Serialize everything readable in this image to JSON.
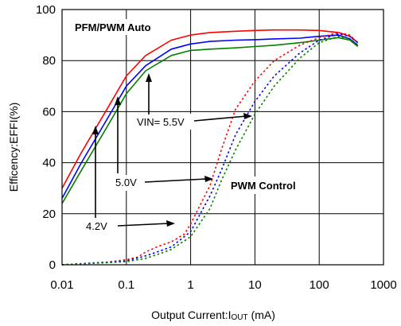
{
  "chart_data": {
    "type": "line",
    "title": "",
    "xlabel": "Output Current:I",
    "xlabel_sub": "OUT",
    "xlabel_unit": " (mA)",
    "ylabel": "Efficency:EFFI(%)",
    "xscale": "log",
    "xlim": [
      0.01,
      1000
    ],
    "ylim": [
      0,
      100
    ],
    "grid": true,
    "x_ticks": [
      0.01,
      0.1,
      1,
      10,
      100,
      1000
    ],
    "x_tick_labels": [
      "0.01",
      "0.1",
      "1",
      "10",
      "100",
      "1000"
    ],
    "y_ticks": [
      0,
      20,
      40,
      60,
      80,
      100
    ],
    "y_tick_labels": [
      "0",
      "20",
      "40",
      "60",
      "80",
      "100"
    ],
    "series": [
      {
        "color": "#ff0000",
        "style": "solid",
        "x": [
          0.01,
          0.02,
          0.05,
          0.1,
          0.2,
          0.5,
          1,
          2,
          5,
          10,
          20,
          50,
          100,
          200,
          300,
          400
        ],
        "y": [
          30,
          44,
          61,
          74,
          82,
          88,
          90,
          91,
          91.5,
          91.8,
          92,
          92,
          91.8,
          91,
          89.5,
          87
        ]
      },
      {
        "color": "#0000ff",
        "style": "solid",
        "x": [
          0.01,
          0.02,
          0.05,
          0.1,
          0.2,
          0.5,
          1,
          2,
          5,
          10,
          20,
          50,
          100,
          200,
          300,
          400
        ],
        "y": [
          26,
          40,
          57,
          70,
          78,
          84.5,
          86.5,
          87.5,
          88,
          88.2,
          88.5,
          88.8,
          89.5,
          90,
          88.5,
          86
        ]
      },
      {
        "color": "#008000",
        "style": "solid",
        "x": [
          0.01,
          0.02,
          0.05,
          0.1,
          0.2,
          0.5,
          1,
          2,
          5,
          10,
          20,
          50,
          100,
          200,
          300,
          400
        ],
        "y": [
          24,
          37,
          54,
          67,
          76,
          82,
          84,
          84.5,
          85,
          85.5,
          86,
          87,
          88,
          89,
          88,
          85.5
        ]
      },
      {
        "color": "#ff0000",
        "style": "dotted",
        "x": [
          0.01,
          0.05,
          0.1,
          0.15,
          0.2,
          0.3,
          0.5,
          0.8,
          1,
          2,
          3,
          5,
          10,
          20,
          50,
          100,
          200,
          300,
          400
        ],
        "y": [
          0,
          1,
          2,
          3,
          5,
          7,
          9,
          12,
          16,
          31,
          45,
          61,
          72,
          80,
          86,
          89,
          91,
          90,
          87
        ]
      },
      {
        "color": "#0000ff",
        "style": "dotted",
        "x": [
          0.01,
          0.05,
          0.1,
          0.2,
          0.3,
          0.5,
          1,
          2,
          3,
          5,
          10,
          20,
          50,
          100,
          200,
          300,
          400
        ],
        "y": [
          0,
          1,
          1.5,
          3.5,
          5,
          7,
          13,
          27,
          37,
          51,
          64,
          74,
          83,
          88,
          90.5,
          89.5,
          87
        ]
      },
      {
        "color": "#008000",
        "style": "dotted",
        "x": [
          0.01,
          0.05,
          0.1,
          0.2,
          0.3,
          0.5,
          1,
          2,
          3,
          5,
          10,
          20,
          50,
          100,
          200,
          300,
          400
        ],
        "y": [
          0,
          0.8,
          1.2,
          2.5,
          4,
          6,
          11,
          22,
          33,
          45,
          59,
          70,
          81,
          87,
          89.5,
          88.5,
          86
        ]
      }
    ],
    "annotations": [
      {
        "text": "PFM/PWM Auto",
        "bold": true
      },
      {
        "text": "PWM Control",
        "bold": true
      },
      {
        "text": "VIN= 5.5V",
        "bold": false
      },
      {
        "text": "5.0V",
        "bold": false
      },
      {
        "text": "4.2V",
        "bold": false
      }
    ]
  }
}
